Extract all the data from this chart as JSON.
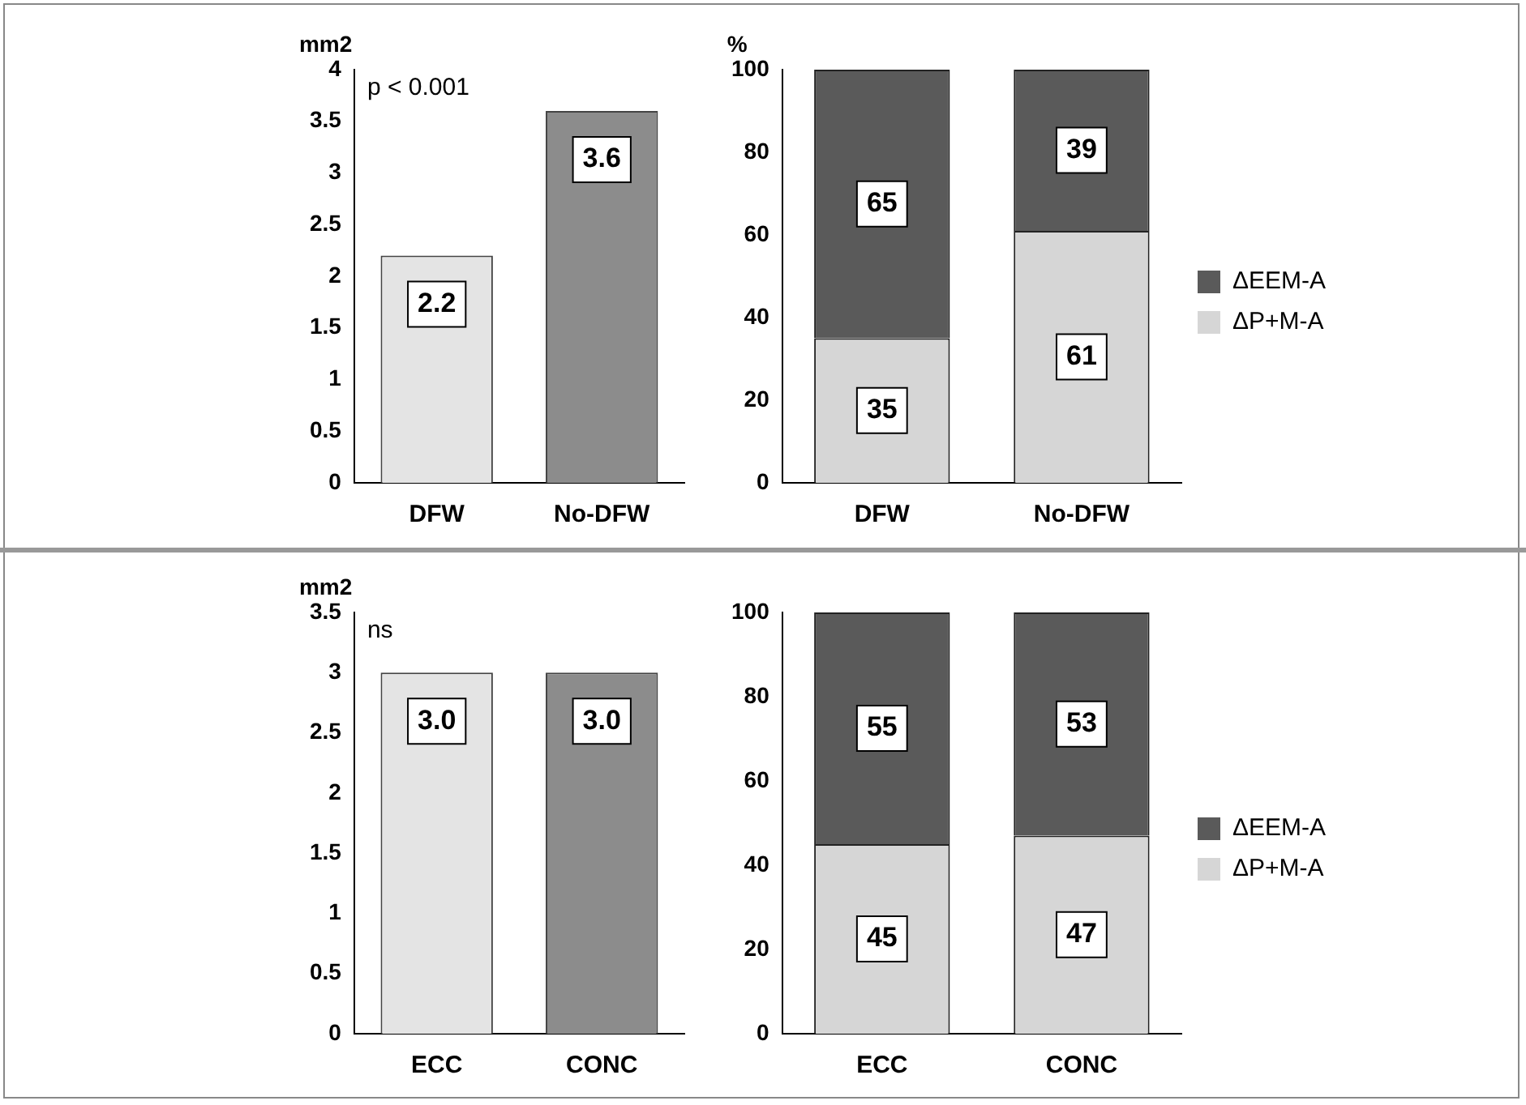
{
  "chart_data": [
    {
      "type": "bar",
      "ylabel": "mm2",
      "categories": [
        "DFW",
        "No-DFW"
      ],
      "values": [
        2.2,
        3.6
      ],
      "colors": [
        "#e4e4e4",
        "#8c8c8c"
      ],
      "ylim": [
        0,
        4
      ],
      "yticks": [
        0,
        0.5,
        1,
        1.5,
        2,
        2.5,
        3,
        3.5,
        4
      ],
      "data_labels": true,
      "annotations": [
        "p < 0.001"
      ]
    },
    {
      "type": "bar",
      "stacked": true,
      "ylabel": "%",
      "categories": [
        "DFW",
        "No-DFW"
      ],
      "series": [
        {
          "name": "ΔP+M-A",
          "color": "#d6d6d6",
          "values": [
            35,
            61
          ]
        },
        {
          "name": "ΔEEM-A",
          "color": "#5a5a5a",
          "values": [
            65,
            39
          ]
        }
      ],
      "ylim": [
        0,
        100
      ],
      "yticks": [
        0,
        20,
        40,
        60,
        80,
        100
      ],
      "data_labels": true,
      "legend": "right"
    },
    {
      "type": "bar",
      "ylabel": "mm2",
      "categories": [
        "ECC",
        "CONC"
      ],
      "values": [
        3,
        3
      ],
      "value_labels": [
        "3.0",
        "3.0"
      ],
      "colors": [
        "#e4e4e4",
        "#8c8c8c"
      ],
      "ylim": [
        0,
        3.5
      ],
      "yticks": [
        0,
        0.5,
        1,
        1.5,
        2,
        2.5,
        3,
        3.5
      ],
      "annotations": [
        "ns"
      ]
    },
    {
      "type": "bar",
      "stacked": true,
      "categories": [
        "ECC",
        "CONC"
      ],
      "series": [
        {
          "name": "ΔP+M-A",
          "color": "#d6d6d6",
          "values": [
            45,
            47
          ]
        },
        {
          "name": "ΔEEM-A",
          "color": "#5a5a5a",
          "values": [
            55,
            53
          ]
        }
      ],
      "ylim": [
        0,
        100
      ],
      "yticks": [
        0,
        20,
        40,
        60,
        80,
        100
      ],
      "data_labels": true,
      "legend": "right"
    }
  ]
}
